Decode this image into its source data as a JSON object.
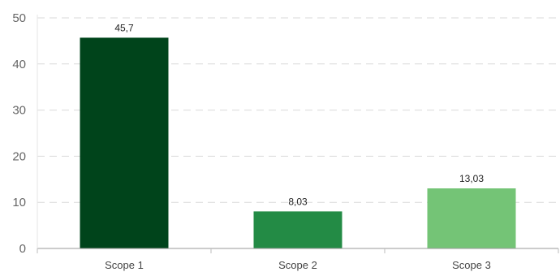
{
  "chart_data": {
    "type": "bar",
    "title": "",
    "xlabel": "",
    "ylabel": "",
    "categories": [
      "Scope 1",
      "Scope 2",
      "Scope 3"
    ],
    "values": [
      45.7,
      8.03,
      13.03
    ],
    "data_labels": [
      "45,7",
      "8,03",
      "13,03"
    ],
    "bar_colors": [
      "#00441b",
      "#238b45",
      "#74c476"
    ],
    "ylim": [
      0,
      50
    ],
    "yticks": [
      0,
      10,
      20,
      30,
      40,
      50
    ],
    "ytick_labels": [
      "0",
      "10",
      "20",
      "30",
      "40",
      "50"
    ],
    "grid": "horizontal dashed",
    "legend": "none"
  }
}
